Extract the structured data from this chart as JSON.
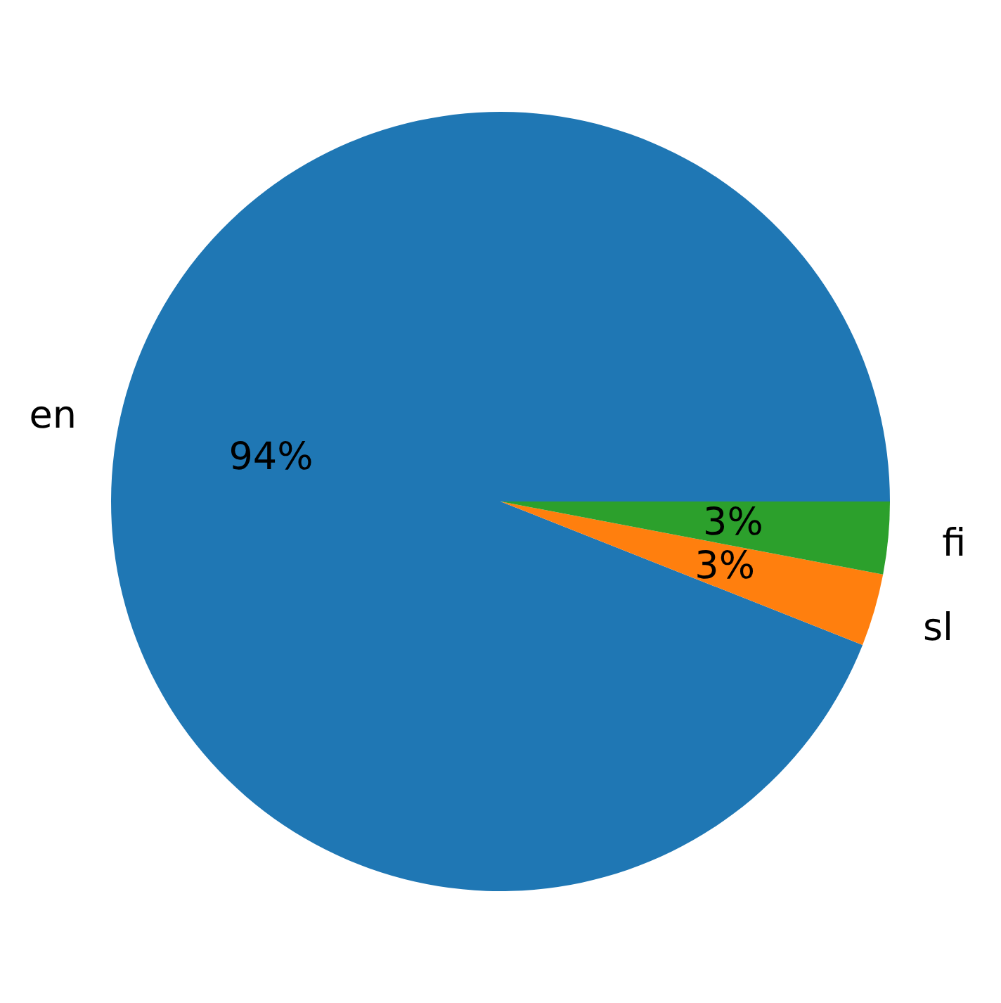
{
  "chart_data": {
    "type": "pie",
    "categories": [
      "en",
      "sl",
      "fi"
    ],
    "values": [
      94,
      3,
      3
    ],
    "colors": [
      "#1f77b4",
      "#ff7f0e",
      "#2ca02c"
    ],
    "value_labels": [
      "94%",
      "3%",
      "3%"
    ]
  }
}
